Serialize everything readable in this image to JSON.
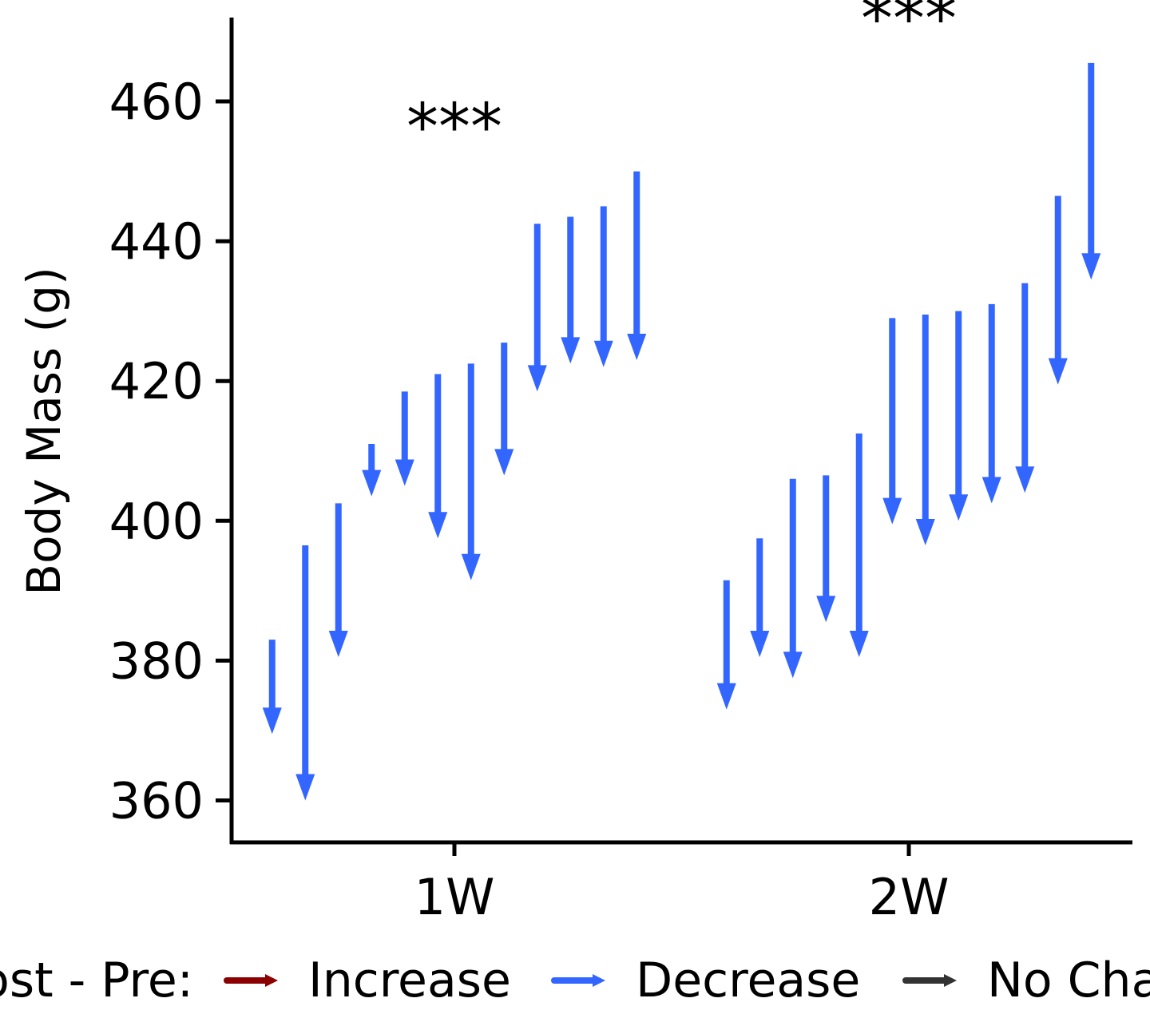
{
  "chart_data": {
    "type": "arrow",
    "ylabel": "Body Mass (g)",
    "ylim": [
      354,
      472
    ],
    "yticks": [
      360,
      380,
      400,
      420,
      440,
      460
    ],
    "categories": [
      "1W",
      "2W"
    ],
    "groups": [
      {
        "category": "1W",
        "significance": "***",
        "pairs": [
          {
            "pre": 383.0,
            "post": 369.5
          },
          {
            "pre": 396.5,
            "post": 360.0
          },
          {
            "pre": 402.5,
            "post": 380.5
          },
          {
            "pre": 411.0,
            "post": 403.5
          },
          {
            "pre": 418.5,
            "post": 405.0
          },
          {
            "pre": 421.0,
            "post": 397.5
          },
          {
            "pre": 422.5,
            "post": 391.5
          },
          {
            "pre": 425.5,
            "post": 406.5
          },
          {
            "pre": 442.5,
            "post": 418.5
          },
          {
            "pre": 443.5,
            "post": 422.5
          },
          {
            "pre": 445.0,
            "post": 422.0
          },
          {
            "pre": 450.0,
            "post": 423.0
          }
        ]
      },
      {
        "category": "2W",
        "significance": "***",
        "pairs": [
          {
            "pre": 391.5,
            "post": 373.0
          },
          {
            "pre": 397.5,
            "post": 380.5
          },
          {
            "pre": 406.0,
            "post": 377.5
          },
          {
            "pre": 406.5,
            "post": 385.5
          },
          {
            "pre": 412.5,
            "post": 380.5
          },
          {
            "pre": 429.0,
            "post": 399.5
          },
          {
            "pre": 429.5,
            "post": 396.5
          },
          {
            "pre": 430.0,
            "post": 400.0
          },
          {
            "pre": 431.0,
            "post": 402.5
          },
          {
            "pre": 434.0,
            "post": 404.0
          },
          {
            "pre": 446.5,
            "post": 419.5
          },
          {
            "pre": 465.5,
            "post": 434.5
          }
        ]
      }
    ],
    "legend": {
      "title": "Post - Pre:",
      "position": "bottom",
      "items": [
        {
          "label": "Increase",
          "color": "#8b0000"
        },
        {
          "label": "Decrease",
          "color": "#3366ff"
        },
        {
          "label": "No Change",
          "color": "#333333"
        }
      ]
    },
    "arrow_color": "#3366ff",
    "grid": false
  }
}
